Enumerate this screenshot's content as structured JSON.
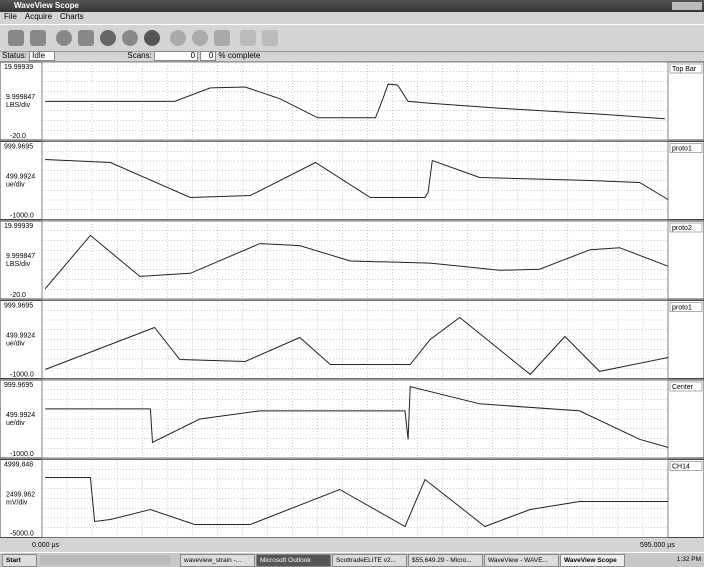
{
  "window": {
    "title": "WaveView Scope",
    "menu": [
      "File",
      "Acquire",
      "Charts"
    ]
  },
  "status": {
    "label": "Status:",
    "state": "Idle",
    "scans_label": "Scans:",
    "scans": 0,
    "count": 0,
    "complete": "% complete"
  },
  "panels": [
    {
      "top": 19.99939,
      "bottom": {
        "value": -20,
        "label": "-20.0"
      },
      "scale": 9.999847,
      "unit": "LBS/div",
      "channel": "Top Bar",
      "trace": {
        "x": [
          3,
          126,
          160,
          193,
          226,
          262,
          317,
          324,
          329,
          338,
          348,
          369,
          435,
          530,
          592
        ],
        "y": [
          -0.2,
          -0.2,
          6.7,
          7.2,
          1.2,
          -8.6,
          -8.6,
          1.2,
          8.6,
          8.2,
          -0.2,
          -1.2,
          -3.7,
          -6.7,
          -9.1
        ]
      }
    },
    {
      "top": 999.9695,
      "bottom": {
        "value": -1000,
        "label": "-1000.0"
      },
      "scale": 499.9924,
      "unit": "ue/div",
      "channel": "proto1",
      "trace": {
        "x": [
          3,
          65,
          141,
          198,
          260,
          312,
          364,
          367,
          371,
          416,
          521,
          568,
          595
        ],
        "y": [
          538,
          461,
          -435,
          -384,
          461,
          -435,
          -435,
          -300,
          512,
          77,
          0,
          -51,
          -486
        ]
      }
    },
    {
      "top": 19.99939,
      "bottom": {
        "value": -20,
        "label": "-20.0"
      },
      "scale": 9.999847,
      "unit": "LBS/div",
      "channel": "proto2",
      "trace": {
        "x": [
          3,
          46,
          93,
          141,
          207,
          245,
          293,
          369,
          435,
          473,
          521,
          549,
          595
        ],
        "y": [
          -14.7,
          12.6,
          -8.4,
          -6.8,
          8.4,
          7.4,
          -0.5,
          -1.6,
          -5.3,
          -4.7,
          5.3,
          6.3,
          -3.2
        ]
      }
    },
    {
      "top": 999.9695,
      "bottom": {
        "value": -1000,
        "label": "-1000.0"
      },
      "scale": 499.9924,
      "unit": "ue/div",
      "channel": "proto1",
      "trace": {
        "x": [
          3,
          107,
          131,
          193,
          245,
          274,
          350,
          369,
          397,
          464,
          497,
          530,
          595
        ],
        "y": [
          -768,
          307,
          -512,
          -563,
          51,
          -640,
          -640,
          0,
          563,
          -896,
          77,
          -819,
          -461
        ]
      }
    },
    {
      "top": 999.9695,
      "bottom": {
        "value": -1000,
        "label": "-1000.0"
      },
      "scale": 499.9924,
      "unit": "ue/div",
      "channel": "Center",
      "trace": {
        "x": [
          3,
          103,
          105,
          150,
          207,
          345,
          348,
          350,
          416,
          511,
          568,
          595
        ],
        "y": [
          260,
          260,
          -598,
          0,
          208,
          208,
          -520,
          832,
          390,
          208,
          -520,
          -728
        ]
      }
    },
    {
      "top": 4999.848,
      "bottom": {
        "value": -5000,
        "label": "-5000.0"
      },
      "scale": 2499.962,
      "unit": "mV/div",
      "channel": "CH14",
      "trace": {
        "x": [
          3,
          46,
          50,
          65,
          103,
          145,
          198,
          283,
          345,
          364,
          421,
          464,
          511,
          595
        ],
        "y": [
          2688,
          2688,
          -2944,
          -2688,
          -1408,
          -3328,
          -3328,
          1152,
          -3584,
          2432,
          -3584,
          -1408,
          -384,
          -384
        ]
      }
    }
  ],
  "time_axis": {
    "start": {
      "value": 0,
      "label": "0.000 µs"
    },
    "end": {
      "value": 595,
      "label": "595.000 µs"
    }
  },
  "taskbar": {
    "start": "Start",
    "tasks": [
      "waveview_strain -...",
      "Microsoft Outlook",
      "ScottradeELITE v2...",
      "$55,649.29 - Micro...",
      "WaveView - WAVE...",
      "WaveView Scope"
    ],
    "clock": "1:32 PM"
  }
}
